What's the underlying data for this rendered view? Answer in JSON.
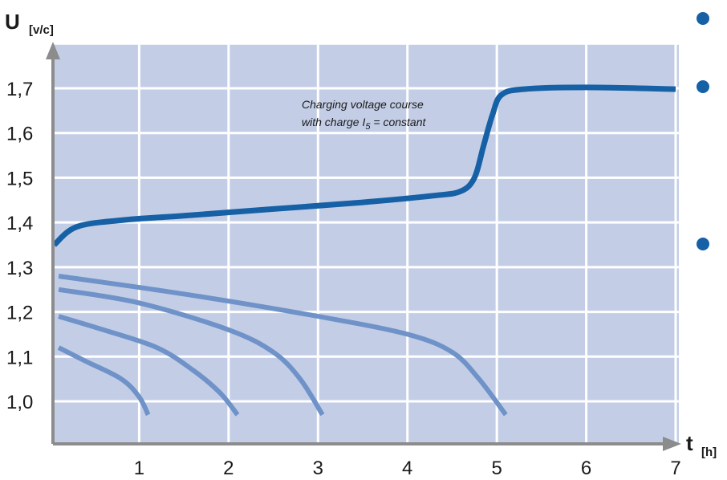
{
  "chart_data": {
    "type": "line",
    "xlim": [
      0,
      7
    ],
    "ylim": [
      0.9,
      1.8
    ],
    "grid": true,
    "colors": {
      "plot_bg": "#c3cee6",
      "grid": "#ffffff",
      "axis": "#8c8c8c",
      "charge_line": "#1660a6",
      "discharge_line": "#6f92c8",
      "bullet": "#1660a6"
    },
    "y_axis": {
      "symbol": "U",
      "unit": "[v/c]",
      "ticks": [
        {
          "value": 1.0,
          "label": "1,0"
        },
        {
          "value": 1.1,
          "label": "1,1"
        },
        {
          "value": 1.2,
          "label": "1,2"
        },
        {
          "value": 1.3,
          "label": "1,3"
        },
        {
          "value": 1.4,
          "label": "1,4"
        },
        {
          "value": 1.5,
          "label": "1,5"
        },
        {
          "value": 1.6,
          "label": "1,6"
        },
        {
          "value": 1.7,
          "label": "1,7"
        }
      ]
    },
    "x_axis": {
      "symbol": "t",
      "unit": "[h]",
      "ticks": [
        {
          "value": 1,
          "label": "1"
        },
        {
          "value": 2,
          "label": "2"
        },
        {
          "value": 3,
          "label": "3"
        },
        {
          "value": 4,
          "label": "4"
        },
        {
          "value": 5,
          "label": "5"
        },
        {
          "value": 6,
          "label": "6"
        },
        {
          "value": 7,
          "label": "7"
        }
      ]
    },
    "annotation": {
      "line1": "Charging voltage course",
      "line2_prefix": "with charge I",
      "line2_sub": "5",
      "line2_suffix": " = constant"
    },
    "series": [
      {
        "role": "charge",
        "x": [
          0.05,
          0.3,
          0.8,
          1.5,
          2.5,
          3.5,
          4.3,
          4.6,
          4.75,
          4.85,
          4.95,
          5.05,
          5.3,
          6,
          7
        ],
        "y": [
          1.35,
          1.39,
          1.405,
          1.415,
          1.43,
          1.445,
          1.46,
          1.47,
          1.5,
          1.57,
          1.64,
          1.685,
          1.698,
          1.702,
          1.698
        ]
      },
      {
        "role": "discharge",
        "x": [
          0.1,
          0.4,
          0.8,
          1.0,
          1.1
        ],
        "y": [
          1.12,
          1.09,
          1.05,
          1.01,
          0.97
        ]
      },
      {
        "role": "discharge",
        "x": [
          0.1,
          0.6,
          1.2,
          1.6,
          1.9,
          2.1
        ],
        "y": [
          1.19,
          1.16,
          1.12,
          1.07,
          1.02,
          0.97
        ]
      },
      {
        "role": "discharge",
        "x": [
          0.1,
          1.0,
          2.0,
          2.5,
          2.8,
          3.05
        ],
        "y": [
          1.25,
          1.22,
          1.16,
          1.11,
          1.05,
          0.97
        ]
      },
      {
        "role": "discharge",
        "x": [
          0.1,
          1.5,
          3.0,
          4.0,
          4.5,
          4.8,
          5.1
        ],
        "y": [
          1.28,
          1.24,
          1.19,
          1.15,
          1.11,
          1.05,
          0.97
        ]
      }
    ]
  }
}
